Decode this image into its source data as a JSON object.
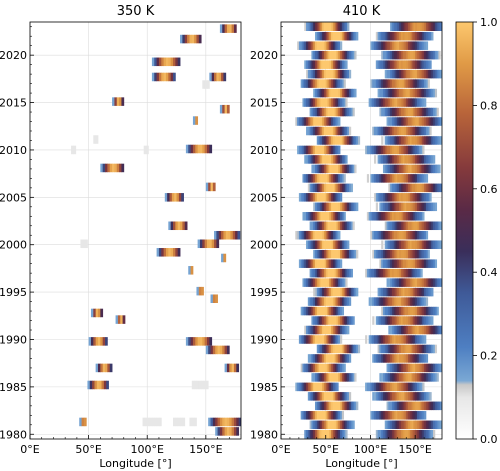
{
  "chart_data": [
    {
      "type": "heatmap",
      "title": "350 K",
      "xlabel": "Longitude [°]",
      "ylabel": "",
      "xlim": [
        0,
        180
      ],
      "ylim": [
        1979.5,
        2023.5
      ],
      "xticks": [
        "0°E",
        "50°E",
        "100°E",
        "150°E"
      ],
      "xtick_values": [
        0,
        50,
        100,
        150
      ],
      "yticks": [
        "1980",
        "1985",
        "1990",
        "1995",
        "2000",
        "2005",
        "2010",
        "2015",
        "2020"
      ],
      "ytick_values": [
        1980,
        1985,
        1990,
        1995,
        2000,
        2005,
        2010,
        2015,
        2020
      ],
      "grid": true,
      "events": [
        {
          "year": 2022.8,
          "lon_start": 162,
          "lon_end": 176,
          "dir": 1
        },
        {
          "year": 2021.7,
          "lon_start": 128,
          "lon_end": 146,
          "dir": 1
        },
        {
          "year": 2019.3,
          "lon_start": 104,
          "lon_end": 128,
          "dir": 1
        },
        {
          "year": 2017.7,
          "lon_start": 104,
          "lon_end": 123,
          "dir": 1
        },
        {
          "year": 2017.7,
          "lon_start": 153,
          "lon_end": 166,
          "dir": 1
        },
        {
          "year": 2016.9,
          "lon_start": 147,
          "lon_end": 153,
          "dir": 0
        },
        {
          "year": 2015.1,
          "lon_start": 70,
          "lon_end": 79,
          "dir": 1
        },
        {
          "year": 2014.3,
          "lon_start": 162,
          "lon_end": 170,
          "dir": 1
        },
        {
          "year": 2013.1,
          "lon_start": 139,
          "lon_end": 142,
          "dir": 1
        },
        {
          "year": 2011.1,
          "lon_start": 54,
          "lon_end": 57,
          "dir": 0
        },
        {
          "year": 2010.1,
          "lon_start": 133,
          "lon_end": 155,
          "dir": 1
        },
        {
          "year": 2010.0,
          "lon_start": 97,
          "lon_end": 101,
          "dir": 0
        },
        {
          "year": 2010.0,
          "lon_start": 35,
          "lon_end": 38,
          "dir": 0
        },
        {
          "year": 2008.1,
          "lon_start": 60,
          "lon_end": 80,
          "dir": 1
        },
        {
          "year": 2006.1,
          "lon_start": 150,
          "lon_end": 158,
          "dir": 1
        },
        {
          "year": 2005.0,
          "lon_start": 115,
          "lon_end": 130,
          "dir": 1
        },
        {
          "year": 2002.0,
          "lon_start": 118,
          "lon_end": 134,
          "dir": 1
        },
        {
          "year": 2001.0,
          "lon_start": 157,
          "lon_end": 178,
          "dir": 1
        },
        {
          "year": 2000.1,
          "lon_start": 43,
          "lon_end": 48,
          "dir": 0
        },
        {
          "year": 2000.1,
          "lon_start": 143,
          "lon_end": 161,
          "dir": 1
        },
        {
          "year": 1999.2,
          "lon_start": 108,
          "lon_end": 128,
          "dir": 1
        },
        {
          "year": 1998.6,
          "lon_start": 163,
          "lon_end": 166,
          "dir": 1
        },
        {
          "year": 1997.3,
          "lon_start": 135,
          "lon_end": 138,
          "dir": 1
        },
        {
          "year": 1995.1,
          "lon_start": 142,
          "lon_end": 148,
          "dir": 1
        },
        {
          "year": 1994.3,
          "lon_start": 154,
          "lon_end": 160,
          "dir": 1
        },
        {
          "year": 1992.8,
          "lon_start": 52,
          "lon_end": 61,
          "dir": 1
        },
        {
          "year": 1992.1,
          "lon_start": 73,
          "lon_end": 80,
          "dir": 1
        },
        {
          "year": 1989.8,
          "lon_start": 50,
          "lon_end": 65,
          "dir": 1
        },
        {
          "year": 1989.8,
          "lon_start": 133,
          "lon_end": 155,
          "dir": 1
        },
        {
          "year": 1988.9,
          "lon_start": 150,
          "lon_end": 170,
          "dir": 1
        },
        {
          "year": 1987.0,
          "lon_start": 56,
          "lon_end": 69,
          "dir": 1
        },
        {
          "year": 1987.0,
          "lon_start": 166,
          "lon_end": 177,
          "dir": 1
        },
        {
          "year": 1985.2,
          "lon_start": 49,
          "lon_end": 66,
          "dir": 1
        },
        {
          "year": 1985.2,
          "lon_start": 138,
          "lon_end": 152,
          "dir": 0
        },
        {
          "year": 1981.3,
          "lon_start": 42,
          "lon_end": 48,
          "dir": 1
        },
        {
          "year": 1981.3,
          "lon_start": 96,
          "lon_end": 112,
          "dir": 0
        },
        {
          "year": 1981.3,
          "lon_start": 122,
          "lon_end": 132,
          "dir": 0
        },
        {
          "year": 1981.3,
          "lon_start": 136,
          "lon_end": 142,
          "dir": 0
        },
        {
          "year": 1981.3,
          "lon_start": 152,
          "lon_end": 180,
          "dir": 1
        },
        {
          "year": 1980.3,
          "lon_start": 158,
          "lon_end": 178,
          "dir": 1
        }
      ]
    },
    {
      "type": "heatmap",
      "title": "410 K",
      "xlabel": "Longitude [°]",
      "ylabel": "",
      "xlim": [
        0,
        180
      ],
      "ylim": [
        1979.5,
        2023.5
      ],
      "xticks": [
        "0°E",
        "50°E",
        "100°E",
        "150°E"
      ],
      "xtick_values": [
        0,
        50,
        100,
        150
      ],
      "yticks": [
        "1980",
        "1985",
        "1990",
        "1995",
        "2000",
        "2005",
        "2010",
        "2015",
        "2020"
      ],
      "ytick_values": [
        1980,
        1985,
        1990,
        1995,
        2000,
        2005,
        2010,
        2015,
        2020
      ],
      "grid": true,
      "colorbar": {
        "ticks": [
          "0.0",
          "0.2",
          "0.4",
          "0.6",
          "0.8",
          "1.0"
        ],
        "tick_values": [
          0,
          0.2,
          0.4,
          0.6,
          0.8,
          1.0
        ],
        "range": [
          0,
          1
        ]
      },
      "band_a_centers": [
        48,
        56,
        44,
        60,
        52,
        40,
        58,
        46,
        54,
        62,
        42,
        50,
        57,
        45,
        53,
        61,
        47,
        55,
        43,
        59,
        51,
        41,
        56,
        48,
        60,
        44,
        54,
        46,
        58,
        50,
        42,
        62,
        52,
        40,
        55,
        47,
        59,
        45,
        53,
        49,
        57,
        43,
        61,
        51
      ],
      "band_b_centers": [
        138,
        146,
        130,
        150,
        134,
        126,
        142,
        148,
        132,
        140,
        128,
        152,
        136,
        144,
        130,
        138,
        150,
        126,
        142,
        134,
        146,
        132,
        148,
        128,
        140,
        136,
        152,
        130,
        144,
        138,
        126,
        146,
        134,
        150,
        142,
        128,
        140,
        132,
        148,
        136,
        144,
        130,
        138,
        152
      ]
    }
  ]
}
